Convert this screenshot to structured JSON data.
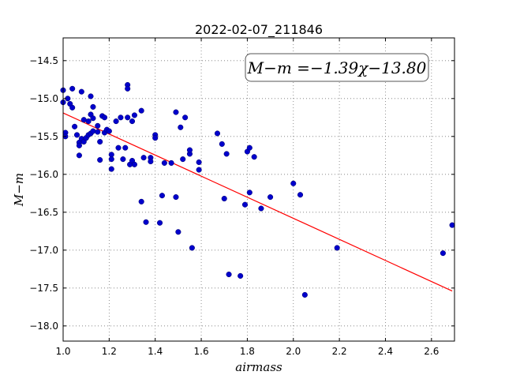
{
  "chart_data": {
    "type": "scatter",
    "title": "2022-02-07_211846",
    "xlabel": "airmass",
    "ylabel": "M−m",
    "xlim": [
      1.0,
      2.7
    ],
    "ylim": [
      -18.2,
      -14.2
    ],
    "y_inverted": true,
    "grid": true,
    "x_ticks": [
      1.0,
      1.2,
      1.4,
      1.6,
      1.8,
      2.0,
      2.2,
      2.4,
      2.6
    ],
    "x_tick_labels": [
      "1.0",
      "1.2",
      "1.4",
      "1.6",
      "1.8",
      "2.0",
      "2.2",
      "2.4",
      "2.6"
    ],
    "y_ticks": [
      -14.5,
      -15.0,
      -15.5,
      -16.0,
      -16.5,
      -17.0,
      -17.5,
      -18.0
    ],
    "y_tick_labels": [
      "−14.5",
      "−15.0",
      "−15.5",
      "−16.0",
      "−16.5",
      "−17.0",
      "−17.5",
      "−18.0"
    ],
    "annotation": "M−m =−1.39χ−13.80",
    "point_color": "#0000cc",
    "fit_color": "#ff0000",
    "fit": {
      "slope": -1.39,
      "intercept": -13.8,
      "x_range": [
        1.0,
        2.69
      ]
    },
    "points": [
      {
        "x": 1.0,
        "y": -14.89
      },
      {
        "x": 1.0,
        "y": -15.05
      },
      {
        "x": 1.01,
        "y": -15.45
      },
      {
        "x": 1.01,
        "y": -15.5
      },
      {
        "x": 1.02,
        "y": -15.0
      },
      {
        "x": 1.03,
        "y": -15.07
      },
      {
        "x": 1.04,
        "y": -15.12
      },
      {
        "x": 1.04,
        "y": -14.87
      },
      {
        "x": 1.05,
        "y": -15.37
      },
      {
        "x": 1.06,
        "y": -15.48
      },
      {
        "x": 1.07,
        "y": -15.75
      },
      {
        "x": 1.07,
        "y": -15.58
      },
      {
        "x": 1.07,
        "y": -15.62
      },
      {
        "x": 1.08,
        "y": -15.53
      },
      {
        "x": 1.08,
        "y": -14.91
      },
      {
        "x": 1.09,
        "y": -15.57
      },
      {
        "x": 1.09,
        "y": -15.28
      },
      {
        "x": 1.1,
        "y": -15.52
      },
      {
        "x": 1.1,
        "y": -15.52
      },
      {
        "x": 1.11,
        "y": -15.3
      },
      {
        "x": 1.11,
        "y": -15.48
      },
      {
        "x": 1.12,
        "y": -15.46
      },
      {
        "x": 1.12,
        "y": -15.21
      },
      {
        "x": 1.12,
        "y": -14.97
      },
      {
        "x": 1.13,
        "y": -15.26
      },
      {
        "x": 1.13,
        "y": -15.11
      },
      {
        "x": 1.13,
        "y": -15.43
      },
      {
        "x": 1.15,
        "y": -15.44
      },
      {
        "x": 1.15,
        "y": -15.36
      },
      {
        "x": 1.16,
        "y": -15.81
      },
      {
        "x": 1.16,
        "y": -15.57
      },
      {
        "x": 1.17,
        "y": -15.23
      },
      {
        "x": 1.18,
        "y": -15.45
      },
      {
        "x": 1.18,
        "y": -15.25
      },
      {
        "x": 1.19,
        "y": -15.41
      },
      {
        "x": 1.2,
        "y": -15.43
      },
      {
        "x": 1.21,
        "y": -15.74
      },
      {
        "x": 1.21,
        "y": -15.8
      },
      {
        "x": 1.21,
        "y": -15.93
      },
      {
        "x": 1.23,
        "y": -15.3
      },
      {
        "x": 1.24,
        "y": -15.65
      },
      {
        "x": 1.25,
        "y": -15.25
      },
      {
        "x": 1.26,
        "y": -15.8
      },
      {
        "x": 1.27,
        "y": -15.65
      },
      {
        "x": 1.28,
        "y": -14.82
      },
      {
        "x": 1.28,
        "y": -14.87
      },
      {
        "x": 1.28,
        "y": -15.25
      },
      {
        "x": 1.29,
        "y": -15.87
      },
      {
        "x": 1.3,
        "y": -15.82
      },
      {
        "x": 1.3,
        "y": -15.3
      },
      {
        "x": 1.31,
        "y": -15.87
      },
      {
        "x": 1.31,
        "y": -15.22
      },
      {
        "x": 1.34,
        "y": -15.16
      },
      {
        "x": 1.34,
        "y": -16.36
      },
      {
        "x": 1.35,
        "y": -15.78
      },
      {
        "x": 1.36,
        "y": -16.63
      },
      {
        "x": 1.38,
        "y": -15.78
      },
      {
        "x": 1.38,
        "y": -15.83
      },
      {
        "x": 1.4,
        "y": -15.48
      },
      {
        "x": 1.4,
        "y": -15.52
      },
      {
        "x": 1.42,
        "y": -16.64
      },
      {
        "x": 1.43,
        "y": -16.28
      },
      {
        "x": 1.44,
        "y": -15.85
      },
      {
        "x": 1.47,
        "y": -15.85
      },
      {
        "x": 1.49,
        "y": -15.18
      },
      {
        "x": 1.49,
        "y": -16.3
      },
      {
        "x": 1.5,
        "y": -16.76
      },
      {
        "x": 1.51,
        "y": -15.38
      },
      {
        "x": 1.52,
        "y": -15.8
      },
      {
        "x": 1.53,
        "y": -15.25
      },
      {
        "x": 1.55,
        "y": -15.73
      },
      {
        "x": 1.55,
        "y": -15.68
      },
      {
        "x": 1.56,
        "y": -16.97
      },
      {
        "x": 1.59,
        "y": -15.84
      },
      {
        "x": 1.59,
        "y": -15.94
      },
      {
        "x": 1.67,
        "y": -15.46
      },
      {
        "x": 1.69,
        "y": -15.6
      },
      {
        "x": 1.7,
        "y": -16.32
      },
      {
        "x": 1.71,
        "y": -15.73
      },
      {
        "x": 1.72,
        "y": -17.32
      },
      {
        "x": 1.77,
        "y": -17.34
      },
      {
        "x": 1.79,
        "y": -16.4
      },
      {
        "x": 1.8,
        "y": -15.7
      },
      {
        "x": 1.81,
        "y": -15.65
      },
      {
        "x": 1.81,
        "y": -16.24
      },
      {
        "x": 1.83,
        "y": -15.77
      },
      {
        "x": 1.86,
        "y": -16.45
      },
      {
        "x": 1.9,
        "y": -16.3
      },
      {
        "x": 2.0,
        "y": -16.12
      },
      {
        "x": 2.03,
        "y": -16.27
      },
      {
        "x": 2.05,
        "y": -17.59
      },
      {
        "x": 2.19,
        "y": -16.97
      },
      {
        "x": 2.65,
        "y": -17.04
      },
      {
        "x": 2.69,
        "y": -16.67
      }
    ]
  }
}
